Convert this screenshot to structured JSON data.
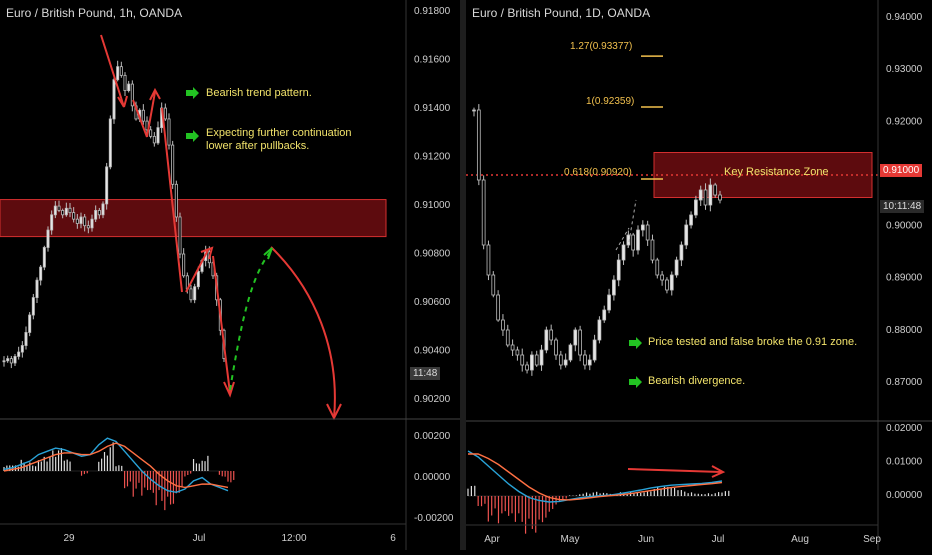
{
  "left": {
    "title": "Euro / British Pound, 1h, OANDA",
    "price_ticks": [
      "0.91800",
      "0.91600",
      "0.91400",
      "0.91200",
      "0.91000",
      "0.90800",
      "0.90600",
      "0.90400",
      "0.90200"
    ],
    "macd_ticks": [
      "0.00200",
      "0.00000",
      "-0.00200"
    ],
    "time_ticks": [
      "29",
      "Jul",
      "12:00",
      "6"
    ],
    "countdown": "11:48",
    "notes": [
      {
        "text": "Bearish trend pattern."
      },
      {
        "text": "Expecting further continuation\nlower after pullbacks."
      }
    ],
    "resistance_zone": {
      "low": 0.9086,
      "high": 0.9103
    },
    "chart_data": {
      "type": "candlestick",
      "symbol": "EUR/GBP",
      "timeframe": "1h",
      "ylim": [
        0.9011,
        0.919
      ],
      "series": [
        {
          "values": [
            0.9029,
            0.903,
            0.9028,
            0.9031,
            0.9033,
            0.9036,
            0.9042,
            0.905,
            0.9058,
            0.9066,
            0.9072,
            0.9081,
            0.9089,
            0.9096,
            0.91,
            0.9098,
            0.9096,
            0.9099,
            0.9097,
            0.9094,
            0.9092,
            0.9095,
            0.9091,
            0.909,
            0.9094,
            0.9098,
            0.9096,
            0.9101,
            0.9118,
            0.914,
            0.9158,
            0.9164,
            0.916,
            0.9153,
            0.9156,
            0.9146,
            0.914,
            0.9144,
            0.9139,
            0.9135,
            0.9132,
            0.9129,
            0.9136,
            0.9145,
            0.914,
            0.9128,
            0.911,
            0.9095,
            0.9078,
            0.9068,
            0.9062,
            0.9057,
            0.9063,
            0.907,
            0.9075,
            0.9079,
            0.9074,
            0.9068,
            0.9057,
            0.9043,
            0.903
          ]
        }
      ]
    },
    "macd": {
      "macd": [
        0.0001,
        0.0002,
        0.0004,
        0.0006,
        0.001,
        0.0012,
        0.0014,
        0.0013,
        0.0011,
        0.0009,
        0.001,
        0.0016,
        0.002,
        0.0018,
        0.0012,
        0.0006,
        0.0,
        -0.0005,
        -0.0009,
        -0.0012,
        -0.0013,
        -0.0011,
        -0.0006,
        -0.0004,
        -0.0008,
        -0.001,
        -0.0012
      ],
      "signal": [
        0.0,
        0.0001,
        0.0002,
        0.0004,
        0.0006,
        0.0008,
        0.001,
        0.0011,
        0.0011,
        0.001,
        0.001,
        0.0012,
        0.0015,
        0.0017,
        0.0015,
        0.0011,
        0.0007,
        0.0003,
        -0.0002,
        -0.0006,
        -0.0009,
        -0.001,
        -0.0009,
        -0.0008,
        -0.0008,
        -0.0009,
        -0.001
      ]
    }
  },
  "right": {
    "title": "Euro / British Pound, 1D, OANDA",
    "price_ticks": [
      "0.94000",
      "0.93000",
      "0.92000",
      "0.91000",
      "0.90000",
      "0.89000",
      "0.88000",
      "0.87000"
    ],
    "macd_ticks": [
      "0.02000",
      "0.01000",
      "0.00000"
    ],
    "time_ticks": [
      "Apr",
      "May",
      "Jun",
      "Jul",
      "Aug",
      "Sep"
    ],
    "countdown": "10:11:48",
    "current_price": "0.91000",
    "fib_levels": [
      {
        "label": "1.27(0.93377)",
        "value": 0.93377
      },
      {
        "label": "1(0.92359)",
        "value": 0.92359
      },
      {
        "label": "0.618(0.90920)",
        "value": 0.9092
      }
    ],
    "zone": {
      "label": "Key Resistance Zone",
      "low": 0.9055,
      "high": 0.9145
    },
    "notes": [
      {
        "text": "Price tested and false broke the 0.91 zone."
      },
      {
        "text": "Bearish divergence."
      }
    ],
    "chart_data": {
      "type": "candlestick",
      "symbol": "EUR/GBP",
      "timeframe": "1D",
      "ylim": [
        0.861,
        0.945
      ],
      "series": [
        {
          "values": [
            0.923,
            0.909,
            0.896,
            0.89,
            0.886,
            0.881,
            0.879,
            0.876,
            0.875,
            0.874,
            0.872,
            0.871,
            0.874,
            0.872,
            0.875,
            0.879,
            0.877,
            0.874,
            0.872,
            0.873,
            0.876,
            0.879,
            0.874,
            0.872,
            0.873,
            0.877,
            0.881,
            0.883,
            0.886,
            0.889,
            0.893,
            0.896,
            0.898,
            0.895,
            0.899,
            0.9,
            0.897,
            0.893,
            0.89,
            0.889,
            0.887,
            0.89,
            0.893,
            0.896,
            0.9,
            0.902,
            0.905,
            0.907,
            0.904,
            0.908,
            0.906,
            0.905
          ]
        }
      ]
    },
    "macd": {
      "macd": [
        0.015,
        0.013,
        0.01,
        0.007,
        0.004,
        0.0015,
        -0.0005,
        -0.0015,
        -0.002,
        -0.0018,
        -0.0012,
        -0.0006,
        -0.0002,
        0.0001,
        0.0003,
        0.0008,
        0.0014,
        0.002,
        0.0027,
        0.0032,
        0.0036,
        0.0038,
        0.004,
        0.0042,
        0.0045,
        0.005
      ],
      "signal": [
        0.014,
        0.014,
        0.0125,
        0.0105,
        0.008,
        0.0055,
        0.003,
        0.001,
        -0.0005,
        -0.0012,
        -0.0013,
        -0.001,
        -0.0006,
        -0.0002,
        0.0001,
        0.0004,
        0.0008,
        0.0013,
        0.0018,
        0.0023,
        0.0028,
        0.0032,
        0.0035,
        0.0038,
        0.0041,
        0.0045
      ]
    }
  },
  "colors": {
    "accent_red": "#e53935",
    "arrow_green": "#22c322",
    "note_text": "#f2e36b",
    "fib": "#f2c14e",
    "candle": "#d0d0d0",
    "macd": "#29a3d8",
    "signal": "#ff7043"
  }
}
